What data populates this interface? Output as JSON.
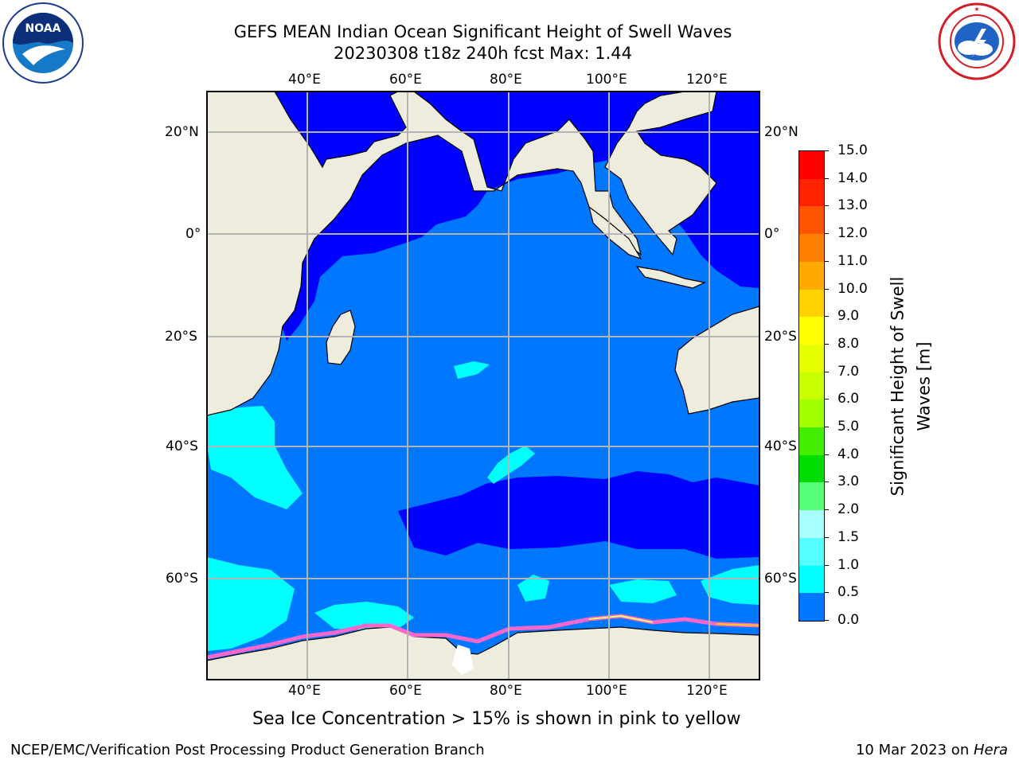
{
  "title": {
    "line1": "GEFS MEAN Indian Ocean Significant Height of Swell Waves",
    "line2": "20230308 t18z 240h fcst   Max: 1.44"
  },
  "logos": {
    "noaa": {
      "text": "NOAA",
      "ring_text": "NATIONAL OCEANIC AND ATMOSPHERIC ADMINISTRATION · U.S. DEPARTMENT OF COMMERCE"
    },
    "nws": {
      "ring_text": "NATIONAL WEATHER SERVICE"
    }
  },
  "map": {
    "lon_top": [
      "40°E",
      "60°E",
      "80°E",
      "100°E",
      "120°E"
    ],
    "lon_bottom": [
      "40°E",
      "60°E",
      "80°E",
      "100°E",
      "120°E"
    ],
    "lat_left": [
      "20°N",
      "0°",
      "20°S",
      "40°S",
      "60°S"
    ],
    "lat_right": [
      "20°N",
      "0°",
      "20°S",
      "40°S",
      "60°S"
    ],
    "colors": {
      "land": "#eeeddd",
      "ocean_low": "#0000ff",
      "ocean_mid": "#0077ff",
      "ocean_high": "#00ffff",
      "ice": "#ff66cc",
      "grid": "#b4b4b4"
    }
  },
  "colorbar": {
    "ticks": [
      "15.0",
      "14.0",
      "13.0",
      "12.0",
      "11.0",
      "10.0",
      "9.0",
      "8.0",
      "7.0",
      "6.0",
      "5.0",
      "4.0",
      "3.0",
      "2.0",
      "1.5",
      "1.0",
      "0.5",
      "0.0"
    ],
    "colors": [
      "#ff0000",
      "#ff2200",
      "#ff5500",
      "#ff7f00",
      "#ffaa00",
      "#ffd200",
      "#ffff00",
      "#e6ff00",
      "#c9ff00",
      "#a0ff00",
      "#44ee00",
      "#00dd00",
      "#55ff77",
      "#aaffff",
      "#55ffff",
      "#00ffff",
      "#0077ff",
      "#0000ff"
    ],
    "label_line1": "Significant Height of Swell",
    "label_line2": "Waves [m]"
  },
  "caption": "Sea Ice Concentration > 15% is shown in pink to yellow",
  "footer": {
    "left": "NCEP/EMC/Verification Post Processing Product Generation Branch",
    "right_prefix": "10 Mar 2023 on ",
    "right_host": "Hera"
  }
}
